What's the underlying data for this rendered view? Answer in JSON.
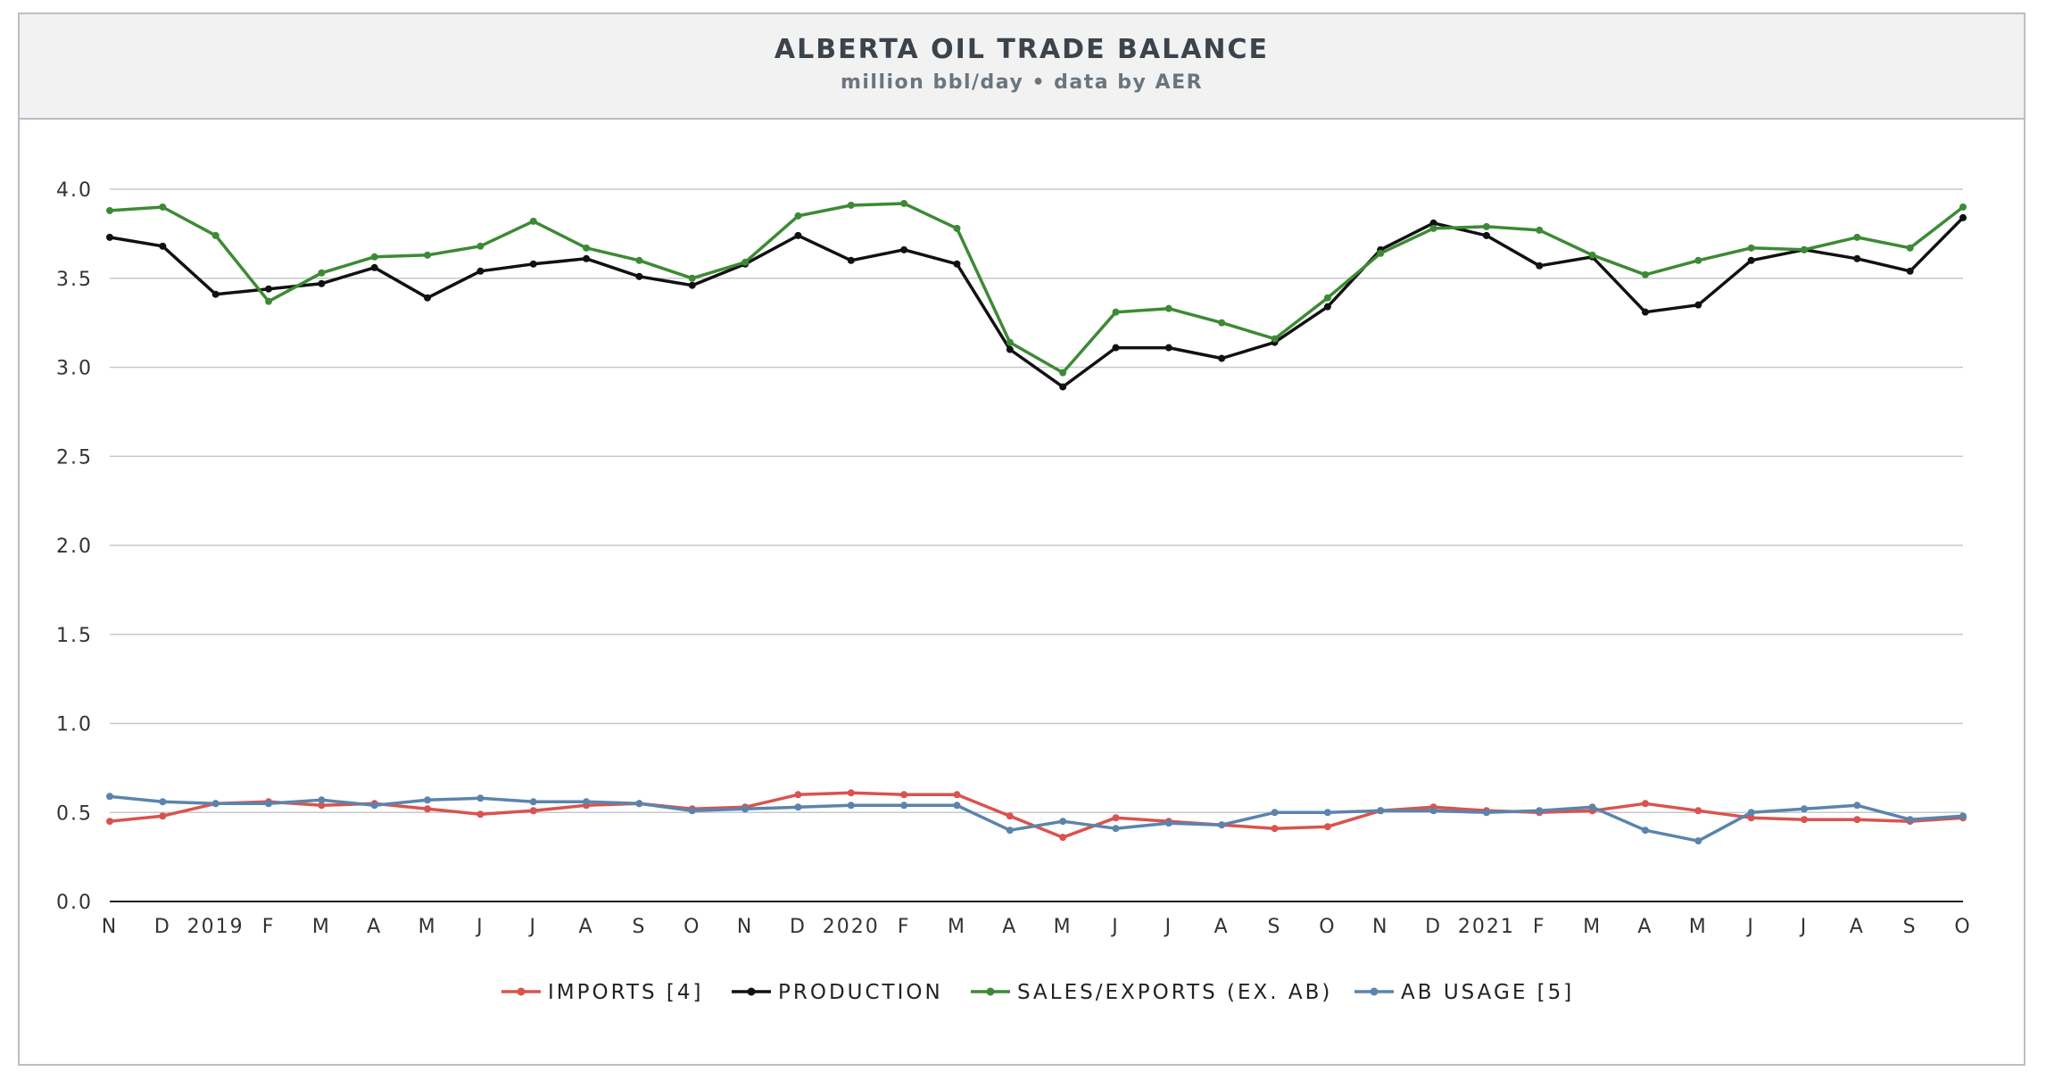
{
  "header": {
    "title": "ALBERTA OIL TRADE BALANCE",
    "subtitle": "million bbl/day • data by AER"
  },
  "chart_data": {
    "type": "line",
    "title": "ALBERTA OIL TRADE BALANCE",
    "subtitle": "million bbl/day • data by AER",
    "x": [
      "N",
      "D",
      "2019",
      "F",
      "M",
      "A",
      "M",
      "J",
      "J",
      "A",
      "S",
      "O",
      "N",
      "D",
      "2020",
      "F",
      "M",
      "A",
      "M",
      "J",
      "J",
      "A",
      "S",
      "O",
      "N",
      "D",
      "2021",
      "F",
      "M",
      "A",
      "M",
      "J",
      "J",
      "A",
      "S",
      "O"
    ],
    "ylim": [
      0,
      4.0
    ],
    "yticks": [
      "0.0",
      "0.5",
      "1.0",
      "1.5",
      "2.0",
      "2.5",
      "3.0",
      "3.5",
      "4.0"
    ],
    "grid": true,
    "legend_position": "bottom",
    "series": [
      {
        "name": "IMPORTS [4]",
        "color": "#d9534f",
        "values": [
          0.45,
          0.48,
          0.55,
          0.56,
          0.54,
          0.55,
          0.52,
          0.49,
          0.51,
          0.54,
          0.55,
          0.52,
          0.53,
          0.6,
          0.61,
          0.6,
          0.6,
          0.48,
          0.36,
          0.47,
          0.45,
          0.43,
          0.41,
          0.42,
          0.51,
          0.53,
          0.51,
          0.5,
          0.51,
          0.55,
          0.51,
          0.47,
          0.46,
          0.46,
          0.45,
          0.47
        ]
      },
      {
        "name": "PRODUCTION",
        "color": "#111111",
        "values": [
          3.73,
          3.68,
          3.41,
          3.44,
          3.47,
          3.56,
          3.39,
          3.54,
          3.58,
          3.61,
          3.51,
          3.46,
          3.58,
          3.74,
          3.6,
          3.66,
          3.58,
          3.1,
          2.89,
          3.11,
          3.11,
          3.05,
          3.14,
          3.34,
          3.66,
          3.81,
          3.74,
          3.57,
          3.62,
          3.31,
          3.35,
          3.6,
          3.66,
          3.61,
          3.54,
          3.84
        ]
      },
      {
        "name": "SALES/EXPORTS (EX. AB)",
        "color": "#3d8a35",
        "values": [
          3.88,
          3.9,
          3.74,
          3.37,
          3.53,
          3.62,
          3.63,
          3.68,
          3.82,
          3.67,
          3.6,
          3.5,
          3.59,
          3.85,
          3.91,
          3.92,
          3.78,
          3.14,
          2.97,
          3.31,
          3.33,
          3.25,
          3.16,
          3.39,
          3.64,
          3.78,
          3.79,
          3.77,
          3.63,
          3.52,
          3.6,
          3.67,
          3.66,
          3.73,
          3.67,
          3.9
        ]
      },
      {
        "name": "AB USAGE [5]",
        "color": "#5b84ac",
        "values": [
          0.59,
          0.56,
          0.55,
          0.55,
          0.57,
          0.54,
          0.57,
          0.58,
          0.56,
          0.56,
          0.55,
          0.51,
          0.52,
          0.53,
          0.54,
          0.54,
          0.54,
          0.4,
          0.45,
          0.41,
          0.44,
          0.43,
          0.5,
          0.5,
          0.51,
          0.51,
          0.5,
          0.51,
          0.53,
          0.4,
          0.34,
          0.5,
          0.52,
          0.54,
          0.46,
          0.48
        ]
      }
    ]
  }
}
